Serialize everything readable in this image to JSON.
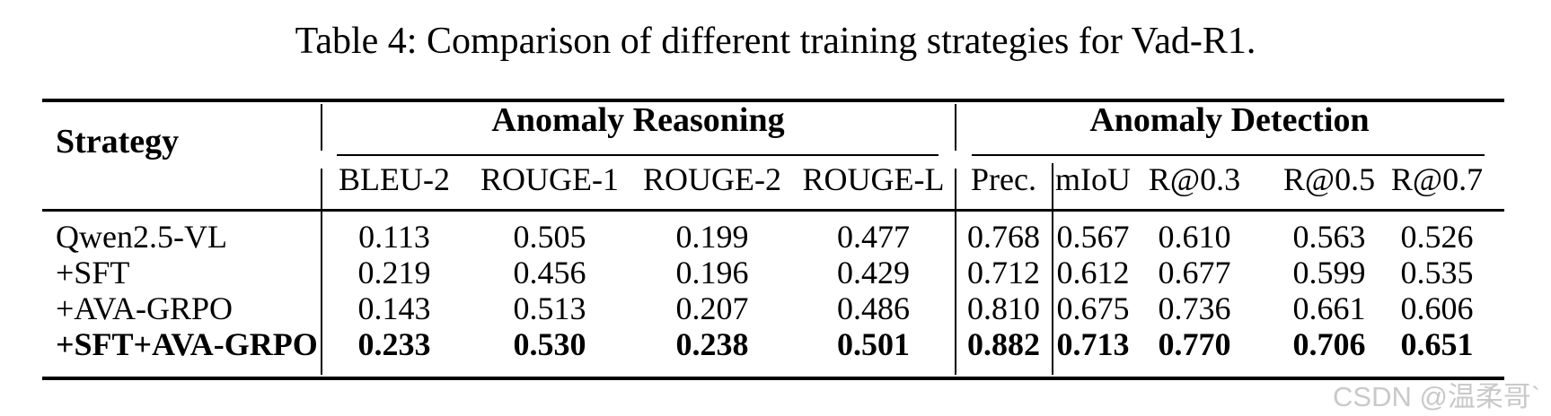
{
  "title": "Table 4: Comparison of different training strategies for Vad-R1.",
  "table": {
    "strategy_header": "Strategy",
    "groups": [
      {
        "label": "Anomaly Reasoning",
        "columns": [
          "BLEU-2",
          "ROUGE-1",
          "ROUGE-2",
          "ROUGE-L"
        ]
      },
      {
        "label": "Anomaly Detection",
        "columns": [
          "Prec.",
          "mIoU",
          "R@0.3",
          "R@0.5",
          "R@0.7"
        ]
      }
    ],
    "rows": [
      {
        "strategy": "Qwen2.5-VL",
        "values": [
          "0.113",
          "0.505",
          "0.199",
          "0.477",
          "0.768",
          "0.567",
          "0.610",
          "0.563",
          "0.526"
        ],
        "bold": false
      },
      {
        "strategy": "+SFT",
        "values": [
          "0.219",
          "0.456",
          "0.196",
          "0.429",
          "0.712",
          "0.612",
          "0.677",
          "0.599",
          "0.535"
        ],
        "bold": false
      },
      {
        "strategy": "+AVA-GRPO",
        "values": [
          "0.143",
          "0.513",
          "0.207",
          "0.486",
          "0.810",
          "0.675",
          "0.736",
          "0.661",
          "0.606"
        ],
        "bold": false
      },
      {
        "strategy": "+SFT+AVA-GRPO",
        "values": [
          "0.233",
          "0.530",
          "0.238",
          "0.501",
          "0.882",
          "0.713",
          "0.770",
          "0.706",
          "0.651"
        ],
        "bold": true
      }
    ]
  },
  "watermark": "CSDN @温柔哥`",
  "colors": {
    "text": "#000000",
    "background": "#ffffff",
    "watermark": "#c9c9c9",
    "rule": "#000000"
  }
}
